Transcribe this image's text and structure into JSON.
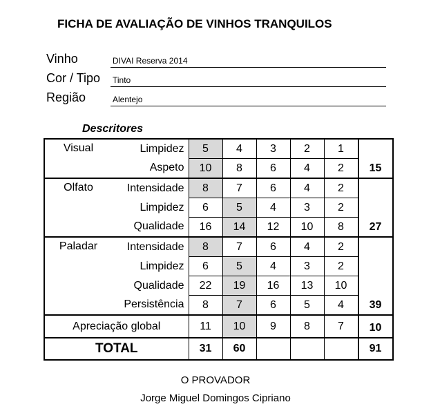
{
  "title": "FICHA DE AVALIAÇÃO DE VINHOS TRANQUILOS",
  "fields": [
    {
      "label": "Vinho",
      "value": "DIVAI Reserva 2014"
    },
    {
      "label": "Cor / Tipo",
      "value": "Tinto"
    },
    {
      "label": "Região",
      "value": "Alentejo"
    }
  ],
  "descritores": "Descritores",
  "selected_color": "#d9d9d9",
  "groups": [
    {
      "name": "Visual",
      "subtotal": "15",
      "rows": [
        {
          "label": "Limpidez",
          "scores": [
            "5",
            "4",
            "3",
            "2",
            "1"
          ],
          "selected": 0
        },
        {
          "label": "Aspeto",
          "scores": [
            "10",
            "8",
            "6",
            "4",
            "2"
          ],
          "selected": 0
        }
      ]
    },
    {
      "name": "Olfato",
      "subtotal": "27",
      "rows": [
        {
          "label": "Intensidade",
          "scores": [
            "8",
            "7",
            "6",
            "4",
            "2"
          ],
          "selected": 0
        },
        {
          "label": "Limpidez",
          "scores": [
            "6",
            "5",
            "4",
            "3",
            "2"
          ],
          "selected": 1
        },
        {
          "label": "Qualidade",
          "scores": [
            "16",
            "14",
            "12",
            "10",
            "8"
          ],
          "selected": 1
        }
      ]
    },
    {
      "name": "Paladar",
      "subtotal": "39",
      "rows": [
        {
          "label": "Intensidade",
          "scores": [
            "8",
            "7",
            "6",
            "4",
            "2"
          ],
          "selected": 0
        },
        {
          "label": "Limpidez",
          "scores": [
            "6",
            "5",
            "4",
            "3",
            "2"
          ],
          "selected": 1
        },
        {
          "label": "Qualidade",
          "scores": [
            "22",
            "19",
            "16",
            "13",
            "10"
          ],
          "selected": 1
        },
        {
          "label": "Persistência",
          "scores": [
            "8",
            "7",
            "6",
            "5",
            "4"
          ],
          "selected": 1
        }
      ]
    },
    {
      "name": "Apreciação global",
      "subtotal": "10",
      "rows": [
        {
          "label": "",
          "scores": [
            "11",
            "10",
            "9",
            "8",
            "7"
          ],
          "selected": 1
        }
      ]
    }
  ],
  "total": {
    "label": "TOTAL",
    "columns": [
      "31",
      "60",
      "",
      "",
      ""
    ],
    "grand": "91"
  },
  "signature": {
    "label": "O PROVADOR",
    "name": "Jorge Miguel Domingos Cipriano"
  }
}
